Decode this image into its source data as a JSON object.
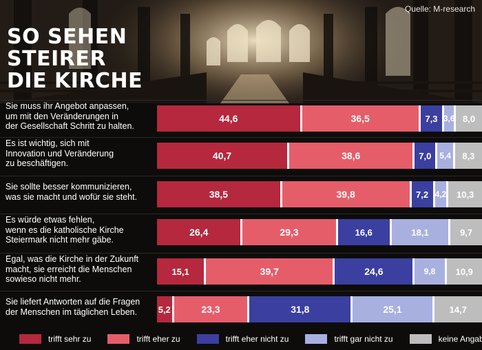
{
  "source": "Quelle: M-research",
  "headline": [
    "SO SEHEN",
    "STEIRER",
    "DIE KIRCHE"
  ],
  "colors": {
    "trifft sehr zu": "#b5283d",
    "trifft eher zu": "#e65d6a",
    "trifft eher nicht zu": "#3b3fa0",
    "trifft gar nicht zu": "#a8b0e0",
    "keine Angabe": "#bdbdbd"
  },
  "chart_data": {
    "type": "bar",
    "orientation": "horizontal-stacked",
    "categories": [
      [
        "Sie muss ihr Angebot anpassen,",
        "um mit den Veränderungen in",
        "der Gesellschaft Schritt zu halten."
      ],
      [
        "Es ist wichtig, sich mit",
        "Innovation und Veränderung",
        "zu beschäftigen."
      ],
      [
        "Sie sollte besser kommunizieren,",
        "was sie macht und wofür sie steht."
      ],
      [
        "Es würde etwas fehlen,",
        "wenn es die katholische Kirche",
        "Steiermark nicht mehr gäbe."
      ],
      [
        "Egal, was die  Kirche in der Zukunft",
        "macht, sie erreicht die Menschen",
        "sowieso nicht mehr."
      ],
      [
        "Sie liefert Antworten auf die Fragen",
        "der Menschen im täglichen Leben."
      ]
    ],
    "series": [
      {
        "name": "trifft sehr zu",
        "values": [
          44.6,
          40.7,
          38.5,
          26.4,
          15.1,
          5.2
        ],
        "labels": [
          "44,6",
          "40,7",
          "38,5",
          "26,4",
          "15,1",
          "5,2"
        ]
      },
      {
        "name": "trifft eher zu",
        "values": [
          36.5,
          38.6,
          39.8,
          29.3,
          39.7,
          23.3
        ],
        "labels": [
          "36,5",
          "38,6",
          "39,8",
          "29,3",
          "39,7",
          "23,3"
        ]
      },
      {
        "name": "trifft eher nicht zu",
        "values": [
          7.3,
          7.0,
          7.2,
          16.6,
          24.6,
          31.8
        ],
        "labels": [
          "7,3",
          "7,0",
          "7,2",
          "16,6",
          "24,6",
          "31,8"
        ]
      },
      {
        "name": "trifft gar nicht zu",
        "values": [
          3.6,
          5.4,
          4.2,
          18.1,
          9.8,
          25.1
        ],
        "labels": [
          "3,6",
          "5,4",
          "4,2",
          "18,1",
          "9,8",
          "25,1"
        ]
      },
      {
        "name": "keine Angabe",
        "values": [
          8.0,
          8.3,
          10.3,
          9.7,
          10.9,
          14.7
        ],
        "labels": [
          "8,0",
          "8,3",
          "10,3",
          "9,7",
          "10,9",
          "14,7"
        ]
      }
    ],
    "legend": [
      "trifft sehr zu",
      "trifft eher zu",
      "trifft eher nicht zu",
      "trifft gar nicht zu",
      "keine Angabe"
    ],
    "title": "SO SEHEN STEIRER DIE KIRCHE",
    "xlabel": "",
    "ylabel": "",
    "xlim": [
      0,
      100
    ]
  }
}
